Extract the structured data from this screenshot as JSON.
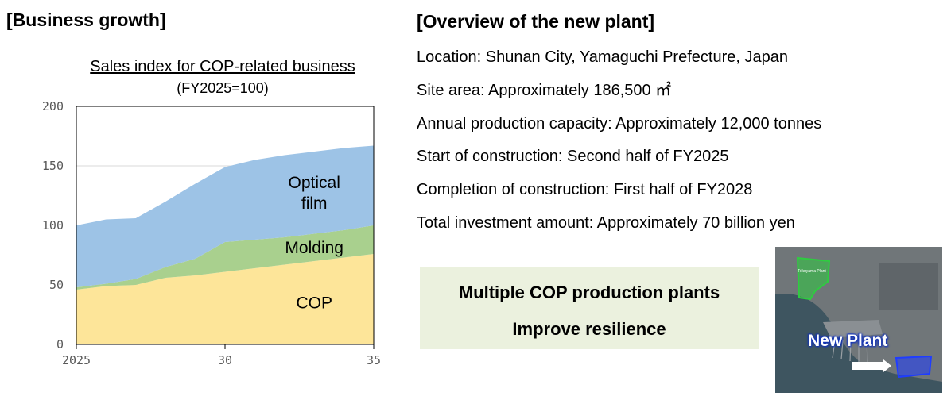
{
  "left_heading": "[Business growth]",
  "right_heading": "[Overview of the new plant]",
  "chart_data": {
    "type": "area",
    "title": "Sales index for COP-related business",
    "subtitle": "(FY2025=100)",
    "x": [
      2025,
      2026,
      2027,
      2028,
      2029,
      2030,
      2031,
      2032,
      2033,
      2034,
      2035
    ],
    "x_tick_labels": [
      "2025",
      "30",
      "35"
    ],
    "x_tick_values": [
      2025,
      2030,
      2035
    ],
    "ylim": [
      0,
      200
    ],
    "y_ticks": [
      0,
      50,
      100,
      150,
      200
    ],
    "grid": true,
    "series": [
      {
        "name": "COP",
        "label_lines": [
          "COP"
        ],
        "color": "#fde599",
        "values": [
          46,
          49,
          50,
          56,
          58,
          61,
          64,
          67,
          70,
          73,
          76
        ]
      },
      {
        "name": "Molding",
        "label_lines": [
          "Molding"
        ],
        "color": "#a9d08e",
        "values": [
          2,
          2,
          5,
          9,
          14,
          25,
          24,
          23,
          23,
          23,
          24
        ]
      },
      {
        "name": "Optical film",
        "label_lines": [
          "Optical",
          "film"
        ],
        "color": "#9dc3e6",
        "values": [
          52,
          54,
          51,
          55,
          63,
          63,
          67,
          69,
          69,
          69,
          67
        ]
      }
    ]
  },
  "overview": [
    "Location: Shunan City, Yamaguchi Prefecture, Japan",
    "Site area: Approximately 186,500 ㎡",
    "Annual production capacity: Approximately 12,000 tonnes",
    "Start of construction: Second half of FY2025",
    "Completion of construction: First half of FY2028",
    "Total investment amount: Approximately 70 billion yen"
  ],
  "callout": {
    "line1": "Multiple COP production plants",
    "line2": "Improve resilience",
    "color": "#ebf1de"
  },
  "map": {
    "existing_plant_label": "Tokuyama Plant",
    "new_plant_label": "New Plant",
    "existing_color": "#2ecc40",
    "new_color": "#1f3dff"
  }
}
